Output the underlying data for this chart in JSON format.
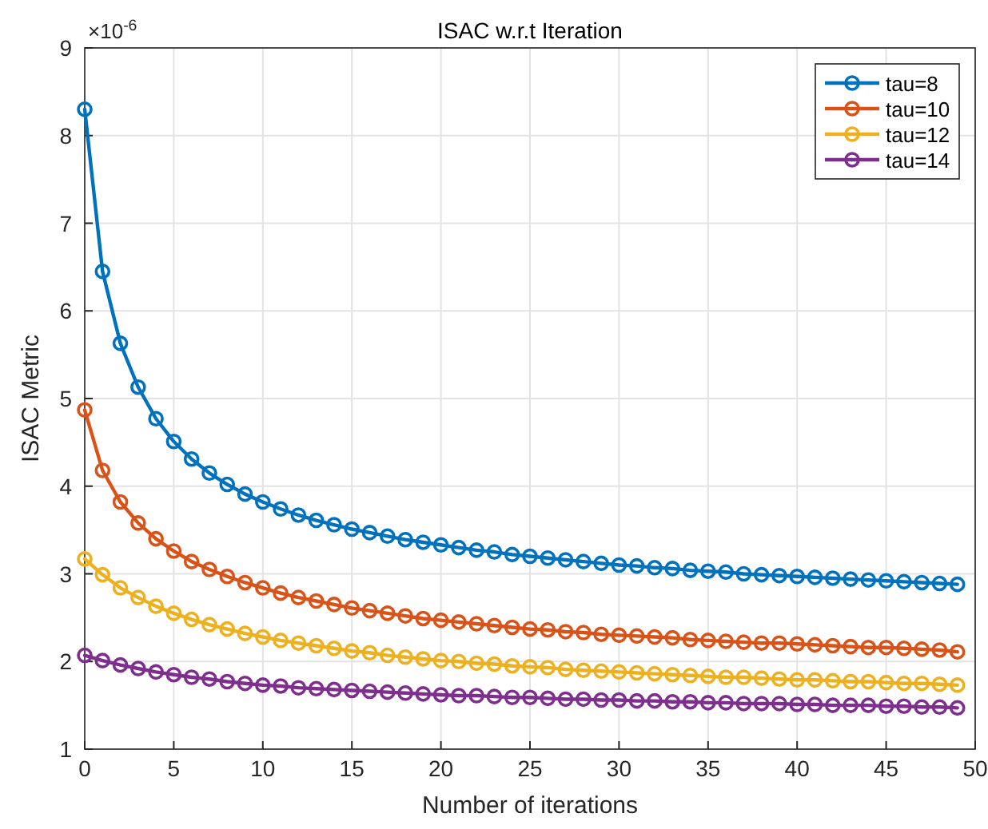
{
  "chart_data": {
    "type": "line",
    "title": "ISAC w.r.t Iteration",
    "xlabel": "Number of iterations",
    "ylabel": "ISAC Metric",
    "annotations": [
      "×10$^{-6}$"
    ],
    "x": [
      0,
      1,
      2,
      3,
      4,
      5,
      6,
      7,
      8,
      9,
      10,
      11,
      12,
      13,
      14,
      15,
      16,
      17,
      18,
      19,
      20,
      21,
      22,
      23,
      24,
      25,
      26,
      27,
      28,
      29,
      30,
      31,
      32,
      33,
      34,
      35,
      36,
      37,
      38,
      39,
      40,
      41,
      42,
      43,
      44,
      45,
      46,
      47,
      48,
      49
    ],
    "xlim": [
      0,
      50
    ],
    "xticks": [
      0,
      5,
      10,
      15,
      20,
      25,
      30,
      35,
      40,
      45,
      50
    ],
    "ylim": [
      1,
      9
    ],
    "yticks": [
      1,
      2,
      3,
      4,
      5,
      6,
      7,
      8,
      9
    ],
    "grid": true,
    "legend": "top right",
    "marker": "circle",
    "line_style": "solid",
    "series": [
      {
        "name": "tau=8",
        "color": "#0072bd",
        "values": [
          8.3,
          6.45,
          5.63,
          5.13,
          4.77,
          4.51,
          4.31,
          4.15,
          4.02,
          3.91,
          3.82,
          3.74,
          3.67,
          3.61,
          3.56,
          3.51,
          3.47,
          3.43,
          3.39,
          3.36,
          3.33,
          3.3,
          3.27,
          3.25,
          3.22,
          3.2,
          3.18,
          3.16,
          3.14,
          3.12,
          3.1,
          3.09,
          3.07,
          3.06,
          3.04,
          3.03,
          3.02,
          3.0,
          2.99,
          2.98,
          2.97,
          2.96,
          2.95,
          2.94,
          2.93,
          2.92,
          2.91,
          2.9,
          2.89,
          2.88
        ]
      },
      {
        "name": "tau=10",
        "color": "#d95319",
        "values": [
          4.87,
          4.18,
          3.82,
          3.58,
          3.4,
          3.26,
          3.14,
          3.05,
          2.97,
          2.9,
          2.84,
          2.78,
          2.73,
          2.69,
          2.65,
          2.61,
          2.58,
          2.55,
          2.52,
          2.49,
          2.47,
          2.45,
          2.43,
          2.41,
          2.39,
          2.37,
          2.36,
          2.34,
          2.33,
          2.31,
          2.3,
          2.29,
          2.28,
          2.27,
          2.25,
          2.24,
          2.23,
          2.22,
          2.21,
          2.21,
          2.2,
          2.19,
          2.18,
          2.17,
          2.16,
          2.16,
          2.15,
          2.14,
          2.13,
          2.11
        ]
      },
      {
        "name": "tau=12",
        "color": "#edb120",
        "values": [
          3.17,
          2.99,
          2.84,
          2.73,
          2.63,
          2.55,
          2.48,
          2.42,
          2.37,
          2.32,
          2.28,
          2.24,
          2.21,
          2.18,
          2.15,
          2.12,
          2.1,
          2.07,
          2.05,
          2.03,
          2.01,
          2.0,
          1.98,
          1.97,
          1.95,
          1.94,
          1.93,
          1.91,
          1.9,
          1.89,
          1.88,
          1.87,
          1.86,
          1.85,
          1.84,
          1.83,
          1.82,
          1.82,
          1.81,
          1.8,
          1.79,
          1.79,
          1.78,
          1.77,
          1.77,
          1.76,
          1.75,
          1.75,
          1.74,
          1.73
        ]
      },
      {
        "name": "tau=14",
        "color": "#7e2f8e",
        "values": [
          2.07,
          2.01,
          1.96,
          1.92,
          1.88,
          1.85,
          1.82,
          1.8,
          1.77,
          1.75,
          1.73,
          1.72,
          1.7,
          1.69,
          1.68,
          1.67,
          1.66,
          1.65,
          1.64,
          1.63,
          1.62,
          1.61,
          1.61,
          1.6,
          1.59,
          1.59,
          1.58,
          1.57,
          1.57,
          1.56,
          1.56,
          1.55,
          1.55,
          1.54,
          1.54,
          1.53,
          1.53,
          1.52,
          1.52,
          1.52,
          1.51,
          1.51,
          1.5,
          1.5,
          1.5,
          1.49,
          1.49,
          1.48,
          1.48,
          1.47
        ]
      }
    ]
  }
}
